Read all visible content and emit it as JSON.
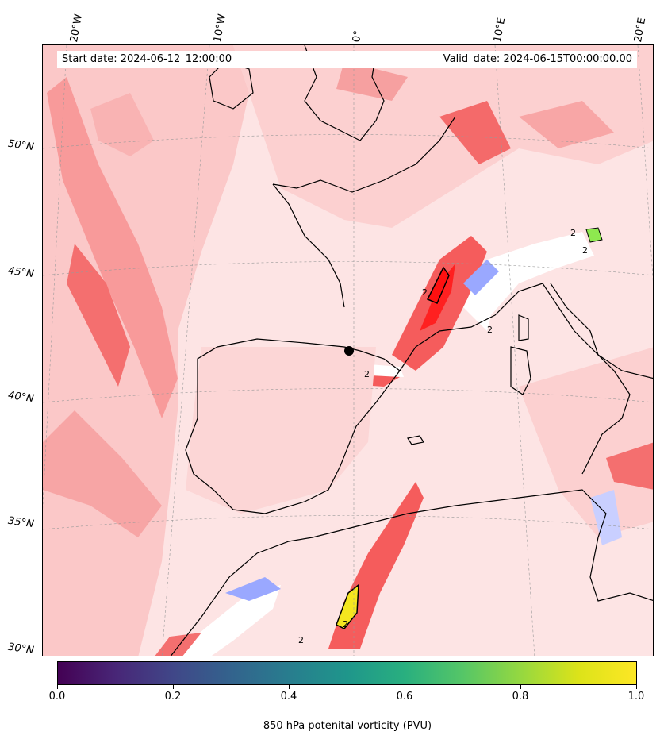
{
  "header": {
    "start_date": "Start date: 2024-06-12_12:00:00",
    "valid_date": "Valid_date: 2024-06-15T00:00:00.00"
  },
  "axes": {
    "longitude_labels": [
      "20°W",
      "10°W",
      "0°",
      "10°E",
      "20°E"
    ],
    "latitude_labels": [
      "50°N",
      "45°N",
      "40°N",
      "35°N",
      "30°N"
    ]
  },
  "colorbar": {
    "label": "850 hPa potenital vorticity (PVU)",
    "ticks": [
      "0.0",
      "0.2",
      "0.4",
      "0.6",
      "0.8",
      "1.0"
    ],
    "range": [
      0.0,
      1.0
    ],
    "colormap": "viridis"
  },
  "contour_labels": [
    "2",
    "2",
    "2",
    "2",
    "2",
    "2",
    "2"
  ],
  "colors": {
    "background_shade": "#fde4e4",
    "low_red": "#fbbcbc",
    "mid_red": "#f77a7a",
    "high_red": "#ff2020",
    "blue_patch": "#9aa8ff",
    "high_pv_yellow": "#f5e61f",
    "high_pv_green": "#8ee84f"
  }
}
